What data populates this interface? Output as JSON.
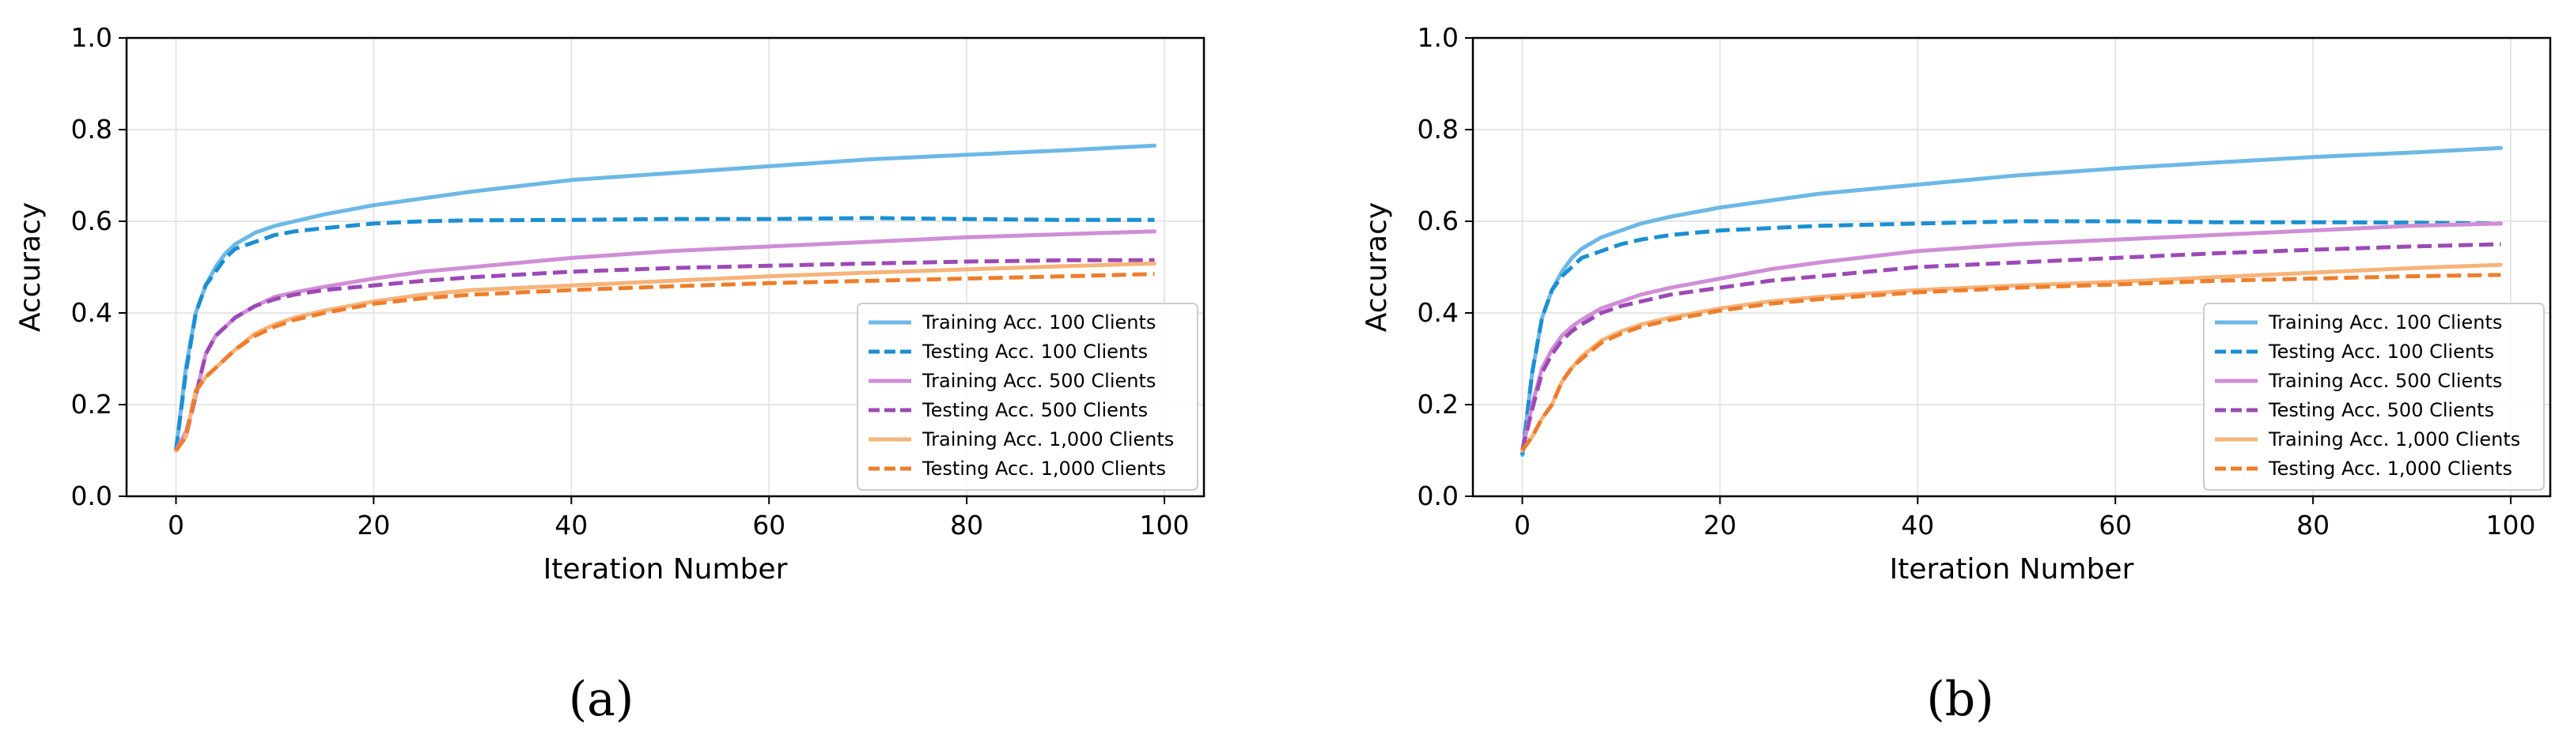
{
  "chart_data": [
    {
      "type": "line",
      "caption": "(a)",
      "xlabel": "Iteration Number",
      "ylabel": "Accuracy",
      "xlim": [
        -5,
        104
      ],
      "ylim": [
        0.0,
        1.0
      ],
      "xticks": [
        "0",
        "20",
        "40",
        "60",
        "80",
        "100"
      ],
      "yticks": [
        "0.0",
        "0.2",
        "0.4",
        "0.6",
        "0.8",
        "1.0"
      ],
      "grid": true,
      "legend_position": "lower-right",
      "x": [
        0,
        1,
        2,
        3,
        4,
        5,
        6,
        8,
        10,
        12,
        15,
        20,
        25,
        30,
        40,
        50,
        60,
        70,
        80,
        90,
        99
      ],
      "series": [
        {
          "name": "Training Acc. 100 Clients",
          "color": "#6cb8e6",
          "style": "solid",
          "values": [
            0.1,
            0.28,
            0.4,
            0.46,
            0.5,
            0.53,
            0.55,
            0.575,
            0.59,
            0.6,
            0.615,
            0.635,
            0.65,
            0.665,
            0.69,
            0.705,
            0.72,
            0.735,
            0.745,
            0.755,
            0.765
          ]
        },
        {
          "name": "Testing Acc. 100 Clients",
          "color": "#1b8fd2",
          "style": "dashed",
          "values": [
            0.1,
            0.27,
            0.4,
            0.46,
            0.49,
            0.52,
            0.54,
            0.555,
            0.57,
            0.578,
            0.585,
            0.595,
            0.6,
            0.602,
            0.603,
            0.605,
            0.605,
            0.607,
            0.605,
            0.603,
            0.603
          ]
        },
        {
          "name": "Training Acc. 500 Clients",
          "color": "#cf8ed6",
          "style": "solid",
          "values": [
            0.1,
            0.14,
            0.22,
            0.31,
            0.35,
            0.37,
            0.39,
            0.415,
            0.435,
            0.445,
            0.457,
            0.475,
            0.49,
            0.5,
            0.52,
            0.535,
            0.545,
            0.555,
            0.565,
            0.572,
            0.578
          ]
        },
        {
          "name": "Testing Acc. 500 Clients",
          "color": "#9c49b6",
          "style": "dashed",
          "values": [
            0.1,
            0.13,
            0.22,
            0.31,
            0.35,
            0.37,
            0.39,
            0.415,
            0.43,
            0.44,
            0.45,
            0.46,
            0.47,
            0.478,
            0.49,
            0.498,
            0.503,
            0.508,
            0.512,
            0.515,
            0.515
          ]
        },
        {
          "name": "Training Acc. 1,000 Clients",
          "color": "#f6b47a",
          "style": "solid",
          "values": [
            0.1,
            0.13,
            0.23,
            0.26,
            0.28,
            0.3,
            0.32,
            0.355,
            0.375,
            0.39,
            0.405,
            0.425,
            0.44,
            0.45,
            0.46,
            0.47,
            0.48,
            0.488,
            0.495,
            0.502,
            0.508
          ]
        },
        {
          "name": "Testing Acc. 1,000 Clients",
          "color": "#ee7d2b",
          "style": "dashed",
          "values": [
            0.1,
            0.13,
            0.23,
            0.26,
            0.28,
            0.3,
            0.32,
            0.35,
            0.37,
            0.385,
            0.4,
            0.42,
            0.432,
            0.44,
            0.45,
            0.458,
            0.465,
            0.47,
            0.475,
            0.48,
            0.485
          ]
        }
      ]
    },
    {
      "type": "line",
      "caption": "(b)",
      "xlabel": "Iteration Number",
      "ylabel": "Accuracy",
      "xlim": [
        -5,
        104
      ],
      "ylim": [
        0.0,
        1.0
      ],
      "xticks": [
        "0",
        "20",
        "40",
        "60",
        "80",
        "100"
      ],
      "yticks": [
        "0.0",
        "0.2",
        "0.4",
        "0.6",
        "0.8",
        "1.0"
      ],
      "grid": true,
      "legend_position": "lower-right",
      "x": [
        0,
        1,
        2,
        3,
        4,
        5,
        6,
        8,
        10,
        12,
        15,
        20,
        25,
        30,
        40,
        50,
        60,
        70,
        80,
        90,
        99
      ],
      "series": [
        {
          "name": "Training Acc. 100 Clients",
          "color": "#6cb8e6",
          "style": "solid",
          "values": [
            0.09,
            0.27,
            0.39,
            0.45,
            0.49,
            0.52,
            0.54,
            0.565,
            0.58,
            0.595,
            0.61,
            0.63,
            0.645,
            0.66,
            0.68,
            0.7,
            0.715,
            0.728,
            0.74,
            0.75,
            0.76
          ]
        },
        {
          "name": "Testing Acc. 100 Clients",
          "color": "#1b8fd2",
          "style": "dashed",
          "values": [
            0.09,
            0.27,
            0.39,
            0.45,
            0.48,
            0.5,
            0.52,
            0.535,
            0.55,
            0.56,
            0.57,
            0.58,
            0.585,
            0.59,
            0.595,
            0.6,
            0.6,
            0.598,
            0.598,
            0.597,
            0.595
          ]
        },
        {
          "name": "Training Acc. 500 Clients",
          "color": "#cf8ed6",
          "style": "solid",
          "values": [
            0.1,
            0.2,
            0.28,
            0.32,
            0.35,
            0.37,
            0.385,
            0.41,
            0.425,
            0.44,
            0.455,
            0.475,
            0.495,
            0.51,
            0.535,
            0.55,
            0.56,
            0.57,
            0.58,
            0.59,
            0.595
          ]
        },
        {
          "name": "Testing Acc. 500 Clients",
          "color": "#9c49b6",
          "style": "dashed",
          "values": [
            0.1,
            0.19,
            0.27,
            0.31,
            0.34,
            0.36,
            0.375,
            0.4,
            0.415,
            0.425,
            0.44,
            0.455,
            0.47,
            0.48,
            0.5,
            0.51,
            0.52,
            0.53,
            0.538,
            0.545,
            0.55
          ]
        },
        {
          "name": "Training Acc. 1,000 Clients",
          "color": "#f6b47a",
          "style": "solid",
          "values": [
            0.1,
            0.13,
            0.17,
            0.2,
            0.25,
            0.28,
            0.305,
            0.34,
            0.36,
            0.375,
            0.39,
            0.41,
            0.425,
            0.435,
            0.45,
            0.46,
            0.468,
            0.478,
            0.488,
            0.498,
            0.505
          ]
        },
        {
          "name": "Testing Acc. 1,000 Clients",
          "color": "#ee7d2b",
          "style": "dashed",
          "values": [
            0.1,
            0.13,
            0.17,
            0.2,
            0.25,
            0.28,
            0.3,
            0.335,
            0.355,
            0.37,
            0.385,
            0.405,
            0.42,
            0.43,
            0.445,
            0.455,
            0.462,
            0.47,
            0.475,
            0.48,
            0.483
          ]
        }
      ]
    }
  ]
}
